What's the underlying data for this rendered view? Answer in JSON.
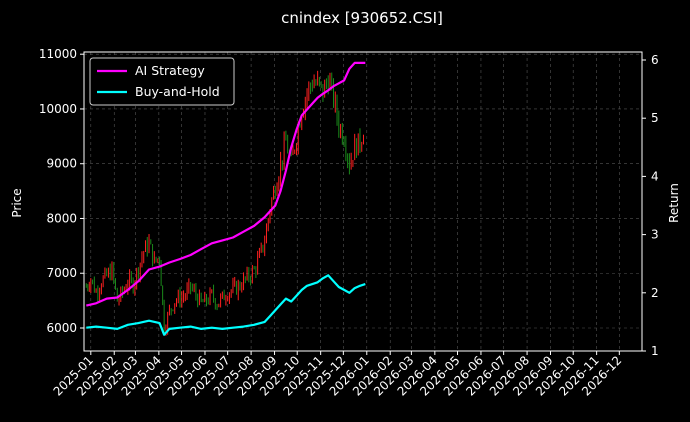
{
  "chart_data": {
    "type": "line",
    "title": "cnindex [930652.CSI]",
    "ylabel_left": "Price",
    "ylabel_right": "Return",
    "x_ticks": [
      "2025-01",
      "2025-02",
      "2025-03",
      "2025-04",
      "2025-05",
      "2025-06",
      "2025-07",
      "2025-08",
      "2025-09",
      "2025-10",
      "2025-11",
      "2025-12",
      "2026-01",
      "2026-02",
      "2026-03",
      "2026-04",
      "2026-05",
      "2026-06",
      "2026-07",
      "2026-08",
      "2026-09",
      "2026-10",
      "2026-11",
      "2026-12"
    ],
    "y_left_ticks": [
      6000,
      7000,
      8000,
      9000,
      10000,
      11000
    ],
    "y_right_ticks": [
      1,
      2,
      3,
      4,
      5,
      6
    ],
    "grid": true,
    "legend": {
      "placement": "top-left",
      "entries": [
        "AI Strategy",
        "Buy-and-Hold"
      ]
    },
    "colors": {
      "ai_strategy": "#ff00ff",
      "buy_and_hold": "#00ffff",
      "candle_up": "#ff2020",
      "candle_down": "#1a8a1a",
      "grid": "#555555"
    },
    "price_candles": {
      "up_color": "#ff2020",
      "down_color": "#1a8a1a",
      "points": [
        [
          "2024-12-26",
          6750
        ],
        [
          "2025-01-01",
          6900
        ],
        [
          "2025-01-08",
          6650
        ],
        [
          "2025-01-15",
          6850
        ],
        [
          "2025-01-22",
          6950
        ],
        [
          "2025-01-29",
          7050
        ],
        [
          "2025-02-05",
          6500
        ],
        [
          "2025-02-12",
          6650
        ],
        [
          "2025-02-19",
          6850
        ],
        [
          "2025-02-26",
          6800
        ],
        [
          "2025-03-05",
          7100
        ],
        [
          "2025-03-12",
          7400
        ],
        [
          "2025-03-19",
          7550
        ],
        [
          "2025-03-26",
          7200
        ],
        [
          "2025-04-02",
          7300
        ],
        [
          "2025-04-08",
          6000
        ],
        [
          "2025-04-15",
          6300
        ],
        [
          "2025-04-22",
          6500
        ],
        [
          "2025-04-29",
          6550
        ],
        [
          "2025-05-06",
          6600
        ],
        [
          "2025-05-13",
          6750
        ],
        [
          "2025-05-20",
          6600
        ],
        [
          "2025-05-27",
          6450
        ],
        [
          "2025-06-03",
          6500
        ],
        [
          "2025-06-10",
          6600
        ],
        [
          "2025-06-17",
          6450
        ],
        [
          "2025-06-24",
          6550
        ],
        [
          "2025-07-01",
          6650
        ],
        [
          "2025-07-08",
          6700
        ],
        [
          "2025-07-15",
          6750
        ],
        [
          "2025-07-22",
          6850
        ],
        [
          "2025-07-29",
          6950
        ],
        [
          "2025-08-05",
          7050
        ],
        [
          "2025-08-12",
          7300
        ],
        [
          "2025-08-19",
          7600
        ],
        [
          "2025-08-26",
          8200
        ],
        [
          "2025-09-02",
          8600
        ],
        [
          "2025-09-09",
          9000
        ],
        [
          "2025-09-16",
          9400
        ],
        [
          "2025-09-23",
          9000
        ],
        [
          "2025-09-30",
          9500
        ],
        [
          "2025-10-07",
          10000
        ],
        [
          "2025-10-14",
          10300
        ],
        [
          "2025-10-21",
          10500
        ],
        [
          "2025-10-28",
          10450
        ],
        [
          "2025-11-04",
          10300
        ],
        [
          "2025-11-11",
          10550
        ],
        [
          "2025-11-18",
          10200
        ],
        [
          "2025-11-25",
          9700
        ],
        [
          "2025-12-02",
          9500
        ],
        [
          "2025-12-09",
          9000
        ],
        [
          "2025-12-16",
          9300
        ],
        [
          "2025-12-23",
          9400
        ],
        [
          "2025-12-30",
          9700
        ]
      ]
    },
    "series": [
      {
        "name": "AI Strategy",
        "color": "#ff00ff",
        "points": [
          [
            "2024-12-26",
            1.78
          ],
          [
            "2025-01-08",
            1.82
          ],
          [
            "2025-01-22",
            1.9
          ],
          [
            "2025-02-05",
            1.92
          ],
          [
            "2025-02-19",
            2.05
          ],
          [
            "2025-03-05",
            2.2
          ],
          [
            "2025-03-19",
            2.4
          ],
          [
            "2025-04-02",
            2.45
          ],
          [
            "2025-04-15",
            2.52
          ],
          [
            "2025-04-29",
            2.58
          ],
          [
            "2025-05-13",
            2.65
          ],
          [
            "2025-05-27",
            2.75
          ],
          [
            "2025-06-10",
            2.85
          ],
          [
            "2025-06-24",
            2.9
          ],
          [
            "2025-07-08",
            2.95
          ],
          [
            "2025-07-22",
            3.05
          ],
          [
            "2025-08-05",
            3.15
          ],
          [
            "2025-08-19",
            3.3
          ],
          [
            "2025-08-26",
            3.4
          ],
          [
            "2025-09-02",
            3.5
          ],
          [
            "2025-09-09",
            3.75
          ],
          [
            "2025-09-16",
            4.1
          ],
          [
            "2025-09-23",
            4.5
          ],
          [
            "2025-09-30",
            4.8
          ],
          [
            "2025-10-07",
            5.05
          ],
          [
            "2025-10-14",
            5.15
          ],
          [
            "2025-10-21",
            5.25
          ],
          [
            "2025-10-28",
            5.35
          ],
          [
            "2025-11-04",
            5.42
          ],
          [
            "2025-11-11",
            5.48
          ],
          [
            "2025-11-18",
            5.55
          ],
          [
            "2025-11-25",
            5.6
          ],
          [
            "2025-12-02",
            5.65
          ],
          [
            "2025-12-09",
            5.85
          ],
          [
            "2025-12-16",
            5.95
          ],
          [
            "2025-12-30",
            5.95
          ]
        ]
      },
      {
        "name": "Buy-and-Hold",
        "color": "#00ffff",
        "points": [
          [
            "2024-12-26",
            1.4
          ],
          [
            "2025-01-08",
            1.42
          ],
          [
            "2025-01-22",
            1.4
          ],
          [
            "2025-02-05",
            1.38
          ],
          [
            "2025-02-19",
            1.45
          ],
          [
            "2025-03-05",
            1.48
          ],
          [
            "2025-03-19",
            1.52
          ],
          [
            "2025-04-02",
            1.48
          ],
          [
            "2025-04-08",
            1.28
          ],
          [
            "2025-04-15",
            1.38
          ],
          [
            "2025-04-29",
            1.4
          ],
          [
            "2025-05-13",
            1.42
          ],
          [
            "2025-05-27",
            1.38
          ],
          [
            "2025-06-10",
            1.4
          ],
          [
            "2025-06-24",
            1.38
          ],
          [
            "2025-07-08",
            1.4
          ],
          [
            "2025-07-22",
            1.42
          ],
          [
            "2025-08-05",
            1.45
          ],
          [
            "2025-08-19",
            1.5
          ],
          [
            "2025-08-26",
            1.6
          ],
          [
            "2025-09-02",
            1.7
          ],
          [
            "2025-09-09",
            1.8
          ],
          [
            "2025-09-16",
            1.9
          ],
          [
            "2025-09-23",
            1.85
          ],
          [
            "2025-09-30",
            1.95
          ],
          [
            "2025-10-07",
            2.05
          ],
          [
            "2025-10-14",
            2.12
          ],
          [
            "2025-10-21",
            2.15
          ],
          [
            "2025-10-28",
            2.18
          ],
          [
            "2025-11-04",
            2.25
          ],
          [
            "2025-11-11",
            2.3
          ],
          [
            "2025-11-18",
            2.2
          ],
          [
            "2025-11-25",
            2.1
          ],
          [
            "2025-12-02",
            2.05
          ],
          [
            "2025-12-09",
            2.0
          ],
          [
            "2025-12-16",
            2.08
          ],
          [
            "2025-12-23",
            2.12
          ],
          [
            "2025-12-30",
            2.15
          ]
        ]
      }
    ]
  }
}
